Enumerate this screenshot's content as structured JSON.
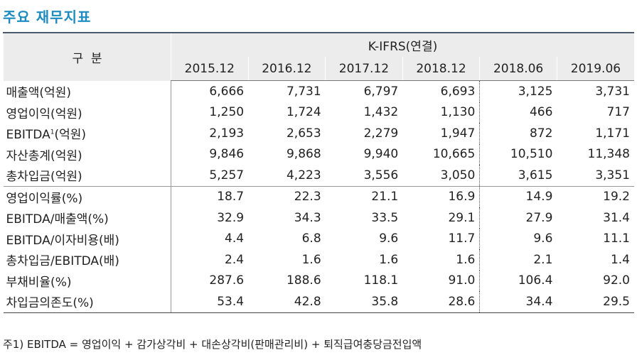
{
  "header": {
    "title": "주요 재무지표"
  },
  "table": {
    "corner": "구  분",
    "group": "K-IFRS(연결)",
    "columns": [
      "2015.12",
      "2016.12",
      "2017.12",
      "2018.12",
      "2018.06",
      "2019.06"
    ],
    "rows": [
      {
        "label": "매출액(억원)",
        "values": [
          "6,666",
          "7,731",
          "6,797",
          "6,693",
          "3,125",
          "3,731"
        ]
      },
      {
        "label": "영업이익(억원)",
        "values": [
          "1,250",
          "1,724",
          "1,432",
          "1,130",
          "466",
          "717"
        ]
      },
      {
        "label": "EBITDA",
        "mark": "1",
        "suffix": "(억원)",
        "values": [
          "2,193",
          "2,653",
          "2,279",
          "1,947",
          "872",
          "1,171"
        ]
      },
      {
        "label": "자산총계(억원)",
        "values": [
          "9,846",
          "9,868",
          "9,940",
          "10,665",
          "10,510",
          "11,348"
        ]
      },
      {
        "label": "총차입금(억원)",
        "values": [
          "5,257",
          "4,223",
          "3,556",
          "3,050",
          "3,615",
          "3,351"
        ]
      },
      {
        "label": "영업이익률(%)",
        "values": [
          "18.7",
          "22.3",
          "21.1",
          "16.9",
          "14.9",
          "19.2"
        ]
      },
      {
        "label": "EBITDA/매출액(%)",
        "values": [
          "32.9",
          "34.3",
          "33.5",
          "29.1",
          "27.9",
          "31.4"
        ]
      },
      {
        "label": "EBITDA/이자비용(배)",
        "values": [
          "4.4",
          "6.8",
          "9.6",
          "11.7",
          "9.6",
          "11.1"
        ]
      },
      {
        "label": "총차입금/EBITDA(배)",
        "values": [
          "2.4",
          "1.6",
          "1.6",
          "1.6",
          "2.1",
          "1.4"
        ]
      },
      {
        "label": "부채비율(%)",
        "values": [
          "287.6",
          "188.6",
          "118.1",
          "91.0",
          "106.4",
          "92.0"
        ]
      },
      {
        "label": "차입금의존도(%)",
        "values": [
          "53.4",
          "42.8",
          "35.8",
          "28.6",
          "34.4",
          "29.5"
        ]
      }
    ]
  },
  "footnote": "주1) EBITDA = 영업이익 + 감가상각비 + 대손상각비(판매관리비) + 퇴직급여충당금전입액"
}
